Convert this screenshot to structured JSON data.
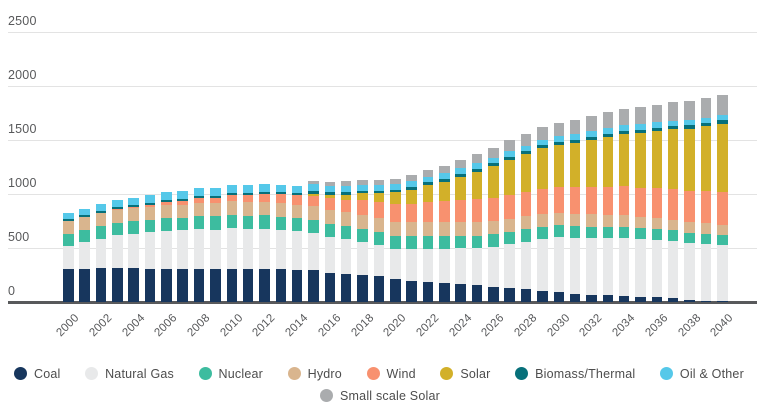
{
  "chart_data": {
    "type": "bar",
    "stacked": true,
    "title": "",
    "xlabel": "",
    "ylabel": "",
    "ylim": [
      0,
      2500
    ],
    "grid": true,
    "legend_position": "bottom",
    "y_ticks": [
      0,
      500,
      1000,
      1500,
      2000,
      2500
    ],
    "y_tick_labels": [
      "0",
      "500",
      "1000",
      "1500",
      "2000",
      "2500"
    ],
    "x": [
      2000,
      2001,
      2002,
      2003,
      2004,
      2005,
      2006,
      2007,
      2008,
      2009,
      2010,
      2011,
      2012,
      2013,
      2014,
      2015,
      2016,
      2017,
      2018,
      2019,
      2020,
      2021,
      2022,
      2023,
      2024,
      2025,
      2026,
      2027,
      2028,
      2029,
      2030,
      2031,
      2032,
      2033,
      2034,
      2035,
      2036,
      2037,
      2038,
      2039,
      2040
    ],
    "x_tick_labels": [
      "2000",
      "2002",
      "2004",
      "2006",
      "2008",
      "2010",
      "2012",
      "2014",
      "2016",
      "2018",
      "2020",
      "2022",
      "2024",
      "2026",
      "2028",
      "2030",
      "2032",
      "2034",
      "2036",
      "2038",
      "2040"
    ],
    "series": [
      {
        "name": "Coal",
        "color": "#17365d",
        "values": [
          310,
          310,
          312,
          312,
          312,
          310,
          310,
          308,
          308,
          305,
          310,
          308,
          308,
          303,
          298,
          292,
          270,
          260,
          250,
          237,
          215,
          196,
          185,
          175,
          167,
          158,
          140,
          132,
          118,
          105,
          95,
          75,
          66,
          62,
          58,
          45,
          42,
          34,
          18,
          12,
          5
        ]
      },
      {
        "name": "Natural Gas",
        "color": "#e8e9ea",
        "values": [
          212,
          245,
          275,
          305,
          320,
          335,
          350,
          355,
          365,
          365,
          375,
          368,
          370,
          360,
          355,
          345,
          335,
          320,
          310,
          295,
          280,
          292,
          305,
          318,
          330,
          340,
          372,
          405,
          442,
          480,
          505,
          518,
          526,
          532,
          536,
          538,
          536,
          534,
          531,
          529,
          527
        ]
      },
      {
        "name": "Nuclear",
        "color": "#3dbc9f",
        "values": [
          110,
          112,
          113,
          114,
          115,
          116,
          117,
          118,
          120,
          122,
          125,
          125,
          124,
          123,
          122,
          120,
          120,
          120,
          120,
          120,
          120,
          119,
          118,
          117,
          116,
          115,
          114,
          113,
          112,
          111,
          110,
          108,
          106,
          104,
          102,
          100,
          98,
          96,
          94,
          93,
          92
        ]
      },
      {
        "name": "Hydro",
        "color": "#d9b58e",
        "values": [
          120,
          120,
          120,
          121,
          121,
          121,
          122,
          122,
          122,
          123,
          122,
          124,
          126,
          128,
          128,
          128,
          129,
          129,
          130,
          130,
          130,
          130,
          129,
          128,
          127,
          125,
          124,
          123,
          121,
          120,
          118,
          116,
          114,
          112,
          110,
          105,
          102,
          99,
          96,
          94,
          92
        ]
      },
      {
        "name": "Wind",
        "color": "#f8916f",
        "values": [
          0,
          0,
          5,
          8,
          12,
          20,
          28,
          35,
          45,
          50,
          58,
          65,
          75,
          83,
          88,
          95,
          108,
          120,
          133,
          146,
          163,
          175,
          188,
          196,
          204,
          212,
          217,
          222,
          227,
          232,
          237,
          244,
          251,
          258,
          265,
          271,
          277,
          284,
          291,
          298,
          305
        ]
      },
      {
        "name": "Solar",
        "color": "#d2b029",
        "values": [
          0,
          0,
          0,
          0,
          0,
          0,
          0,
          0,
          0,
          0,
          0,
          0,
          0,
          0,
          0,
          25,
          32,
          46,
          62,
          80,
          108,
          130,
          158,
          180,
          218,
          258,
          290,
          320,
          350,
          375,
          388,
          415,
          440,
          462,
          486,
          508,
          530,
          552,
          576,
          602,
          632
        ]
      },
      {
        "name": "Biomass/Thermal",
        "color": "#07707a",
        "values": [
          15,
          15,
          15,
          16,
          16,
          16,
          17,
          17,
          18,
          18,
          20,
          20,
          20,
          21,
          21,
          22,
          22,
          23,
          23,
          24,
          25,
          25,
          25,
          26,
          26,
          26,
          27,
          27,
          27,
          28,
          28,
          28,
          28,
          29,
          29,
          29,
          29,
          30,
          30,
          30,
          30
        ]
      },
      {
        "name": "Oil & Other",
        "color": "#55c8e9",
        "values": [
          62,
          64,
          66,
          68,
          70,
          70,
          72,
          73,
          75,
          75,
          75,
          73,
          72,
          68,
          66,
          62,
          60,
          58,
          55,
          52,
          50,
          50,
          50,
          51,
          51,
          52,
          52,
          52,
          52,
          52,
          52,
          51,
          51,
          51,
          50,
          50,
          50,
          50,
          50,
          50,
          50
        ]
      },
      {
        "name": "Small scale Solar",
        "color": "#aaacae",
        "values": [
          0,
          0,
          0,
          0,
          0,
          0,
          0,
          0,
          0,
          0,
          0,
          0,
          0,
          0,
          0,
          30,
          38,
          42,
          46,
          48,
          52,
          58,
          66,
          72,
          80,
          86,
          94,
          102,
          110,
          118,
          128,
          135,
          142,
          149,
          155,
          160,
          165,
          170,
          175,
          181,
          188
        ]
      }
    ],
    "legend_rows": [
      [
        "Coal",
        "Natural Gas",
        "Nuclear",
        "Hydro",
        "Wind",
        "Solar",
        "Biomass/Thermal",
        "Oil & Other"
      ],
      [
        "Small scale Solar"
      ]
    ]
  },
  "style": {
    "gridline_color": "#e3e3e3",
    "zero_axis_color": "#58595b",
    "tick_text_color": "#58595b",
    "legend_text_color": "#4d4d4d",
    "background": "#ffffff"
  }
}
